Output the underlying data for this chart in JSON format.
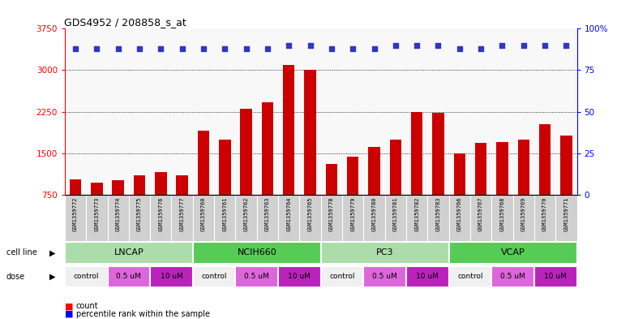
{
  "title": "GDS4952 / 208858_s_at",
  "samples": [
    "GSM1359772",
    "GSM1359773",
    "GSM1359774",
    "GSM1359775",
    "GSM1359776",
    "GSM1359777",
    "GSM1359760",
    "GSM1359761",
    "GSM1359762",
    "GSM1359763",
    "GSM1359764",
    "GSM1359765",
    "GSM1359778",
    "GSM1359779",
    "GSM1359780",
    "GSM1359781",
    "GSM1359782",
    "GSM1359783",
    "GSM1359766",
    "GSM1359767",
    "GSM1359768",
    "GSM1359769",
    "GSM1359770",
    "GSM1359771"
  ],
  "counts": [
    1020,
    960,
    1010,
    1100,
    1160,
    1100,
    1900,
    1750,
    2300,
    2420,
    3100,
    3010,
    1310,
    1430,
    1610,
    1750,
    2250,
    2230,
    1500,
    1680,
    1700,
    1750,
    2020,
    1820
  ],
  "percentile_ranks": [
    88,
    88,
    88,
    88,
    88,
    88,
    88,
    88,
    88,
    88,
    90,
    90,
    88,
    88,
    88,
    90,
    90,
    90,
    88,
    88,
    90,
    90,
    90,
    90
  ],
  "bar_color": "#cc0000",
  "dot_color": "#3333cc",
  "ylim_left": [
    750,
    3750
  ],
  "ylim_right": [
    0,
    100
  ],
  "yticks_left": [
    750,
    1500,
    2250,
    3000,
    3750
  ],
  "yticks_right": [
    0,
    25,
    50,
    75,
    100
  ],
  "cell_lines": [
    {
      "name": "LNCAP",
      "start": 0,
      "end": 6,
      "color": "#aaddaa"
    },
    {
      "name": "NCIH660",
      "start": 6,
      "end": 12,
      "color": "#55cc55"
    },
    {
      "name": "PC3",
      "start": 12,
      "end": 18,
      "color": "#aaddaa"
    },
    {
      "name": "VCAP",
      "start": 18,
      "end": 24,
      "color": "#55cc55"
    }
  ],
  "dose_groups": [
    {
      "label": "control",
      "start": 0,
      "end": 2,
      "color": "#f0f0f0"
    },
    {
      "label": "0.5 uM",
      "start": 2,
      "end": 4,
      "color": "#dd66dd"
    },
    {
      "label": "10 uM",
      "start": 4,
      "end": 6,
      "color": "#bb22bb"
    },
    {
      "label": "control",
      "start": 6,
      "end": 8,
      "color": "#f0f0f0"
    },
    {
      "label": "0.5 uM",
      "start": 8,
      "end": 10,
      "color": "#dd66dd"
    },
    {
      "label": "10 uM",
      "start": 10,
      "end": 12,
      "color": "#bb22bb"
    },
    {
      "label": "control",
      "start": 12,
      "end": 14,
      "color": "#f0f0f0"
    },
    {
      "label": "0.5 uM",
      "start": 14,
      "end": 16,
      "color": "#dd66dd"
    },
    {
      "label": "10 uM",
      "start": 16,
      "end": 18,
      "color": "#bb22bb"
    },
    {
      "label": "control",
      "start": 18,
      "end": 20,
      "color": "#f0f0f0"
    },
    {
      "label": "0.5 uM",
      "start": 20,
      "end": 22,
      "color": "#dd66dd"
    },
    {
      "label": "10 uM",
      "start": 22,
      "end": 24,
      "color": "#bb22bb"
    }
  ],
  "plot_bg_color": "#f8f8f8",
  "label_bg_color": "#d0d0d0"
}
